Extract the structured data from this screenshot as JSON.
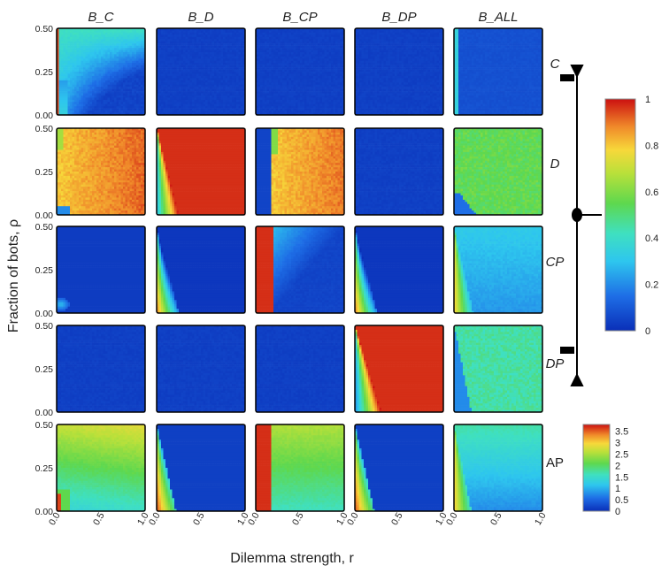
{
  "chart_data": {
    "type": "heatmap",
    "columns": [
      "B_C",
      "B_D",
      "B_CP",
      "B_DP",
      "B_ALL"
    ],
    "rows": [
      "C",
      "D",
      "CP",
      "DP",
      "AP"
    ],
    "xlabel": "Dilemma strength, r",
    "ylabel": "Fraction of bots, ρ",
    "x_ticks": [
      "0.0",
      "0.5",
      "1.0"
    ],
    "y_ticks": [
      "0.00",
      "0.25",
      "0.50"
    ],
    "xlim": [
      0,
      1
    ],
    "ylim": [
      0,
      0.5
    ],
    "colorbar_fraction": {
      "ticks": [
        "0",
        "0.2",
        "0.4",
        "0.6",
        "0.8",
        "1"
      ],
      "range": [
        0,
        1
      ]
    },
    "colorbar_ap": {
      "ticks": [
        "0",
        "0.5",
        "1",
        "1.5",
        "2",
        "2.5",
        "3",
        "3.5"
      ],
      "range": [
        0,
        3.8
      ]
    },
    "panels": [
      [
        {
          "id": "C_BC",
          "value_at_origin": 1.0,
          "bg": 0.3,
          "desc": "cooperator fraction high near r=0, cyan elsewhere"
        },
        {
          "id": "C_BD",
          "bg": 0.02
        },
        {
          "id": "C_BCP",
          "bg": 0.02
        },
        {
          "id": "C_BDP",
          "bg": 0.02
        },
        {
          "id": "C_BALL",
          "bg": 0.1
        }
      ],
      [
        {
          "id": "D_BC",
          "bg": 0.85
        },
        {
          "id": "D_BD",
          "bg": 1.0
        },
        {
          "id": "D_BCP",
          "bg": 0.85
        },
        {
          "id": "D_BDP",
          "bg": 0.02
        },
        {
          "id": "D_BALL",
          "bg": 0.55
        }
      ],
      [
        {
          "id": "CP_BC",
          "bg": 0.02
        },
        {
          "id": "CP_BD",
          "bg": 0.02
        },
        {
          "id": "CP_BCP",
          "bg": 0.2
        },
        {
          "id": "CP_BDP",
          "bg": 0.02
        },
        {
          "id": "CP_BALL",
          "bg": 0.3
        }
      ],
      [
        {
          "id": "DP_BC",
          "bg": 0.02
        },
        {
          "id": "DP_BD",
          "bg": 0.02
        },
        {
          "id": "DP_BCP",
          "bg": 0.02
        },
        {
          "id": "DP_BDP",
          "bg": 1.0
        },
        {
          "id": "DP_BALL",
          "bg": 0.42
        }
      ],
      [
        {
          "id": "AP_BC",
          "bg": 2.2
        },
        {
          "id": "AP_BD",
          "bg": 0.1
        },
        {
          "id": "AP_BCP",
          "bg": 2.3
        },
        {
          "id": "AP_BDP",
          "bg": 0.1
        },
        {
          "id": "AP_BALL",
          "bg": 1.1
        }
      ]
    ]
  },
  "legend": {
    "row_markers": [
      "C",
      "D",
      "CP",
      "DP"
    ]
  }
}
